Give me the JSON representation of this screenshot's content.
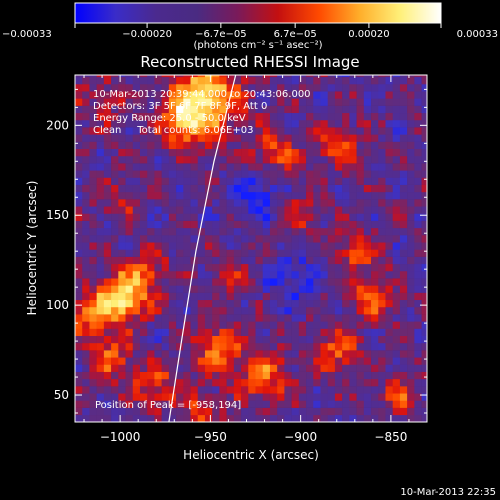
{
  "chart_data": {
    "type": "heatmap",
    "title": "Reconstructed RHESSI Image",
    "xlabel": "Heliocentric X (arcsec)",
    "ylabel": "Heliocentric Y (arcsec)",
    "xlim": [
      -1025,
      -830
    ],
    "ylim": [
      35,
      228
    ],
    "x_ticks": [
      -1000,
      -950,
      -900,
      -850
    ],
    "x_tick_labels": [
      "−1000",
      "−950",
      "−900",
      "−850"
    ],
    "y_ticks": [
      50,
      100,
      150,
      200
    ],
    "y_tick_labels": [
      "50",
      "100",
      "150",
      "200"
    ],
    "colorbar": {
      "range": [
        -0.00033,
        0.00033
      ],
      "ticks": [
        -0.00033,
        -0.0002,
        -6.7e-05,
        6.7e-05,
        0.0002,
        0.00033
      ],
      "tick_labels": [
        "−0.00033",
        "−0.00020",
        "−6.7e−05",
        "6.7e−05",
        "0.00020",
        "0.00033"
      ],
      "units_text": "(photons cm⁻² s⁻¹ asec⁻²)",
      "colors": [
        "#0000ff",
        "#3a2cc8",
        "#4b2a8e",
        "#4a2b82",
        "#7a1a5a",
        "#c41010",
        "#ff4a00",
        "#ffae2a",
        "#fff07a",
        "#ffffff"
      ]
    },
    "annotations": [
      "10-Mar-2013 20:39:44.000 to 20:43:06.000",
      "Detectors: 3F 5F 6F 7F 8F 9F, Att 0",
      "Energy Range: 25.0 - 50.0 keV",
      "Clean     Total counts: 6.06E+03"
    ],
    "peak_label": "Position of Peak = [-958,194]",
    "limb_curve": [
      [
        -973,
        35
      ],
      [
        -966,
        80
      ],
      [
        -958,
        130
      ],
      [
        -948,
        180
      ],
      [
        -936,
        228
      ]
    ],
    "sources": [
      {
        "x": -953,
        "y": 215,
        "amp": 2.4,
        "r": 13
      },
      {
        "x": -965,
        "y": 200,
        "amp": 1.4,
        "r": 9
      },
      {
        "x": -998,
        "y": 105,
        "amp": 2.3,
        "r": 9
      },
      {
        "x": -1015,
        "y": 95,
        "amp": 1.3,
        "r": 10
      },
      {
        "x": -985,
        "y": 120,
        "amp": 1.0,
        "r": 8
      },
      {
        "x": -1005,
        "y": 70,
        "amp": 1.1,
        "r": 9
      },
      {
        "x": -980,
        "y": 55,
        "amp": 1.1,
        "r": 9
      },
      {
        "x": -945,
        "y": 75,
        "amp": 1.5,
        "r": 9
      },
      {
        "x": -920,
        "y": 60,
        "amp": 1.3,
        "r": 10
      },
      {
        "x": -915,
        "y": 185,
        "amp": 1.1,
        "r": 9
      },
      {
        "x": -880,
        "y": 190,
        "amp": 1.0,
        "r": 9
      },
      {
        "x": -900,
        "y": 150,
        "amp": 0.8,
        "r": 8
      },
      {
        "x": -870,
        "y": 130,
        "amp": 1.1,
        "r": 8
      },
      {
        "x": -860,
        "y": 105,
        "amp": 1.2,
        "r": 9
      },
      {
        "x": -880,
        "y": 75,
        "amp": 1.2,
        "r": 9
      },
      {
        "x": -1010,
        "y": 215,
        "amp": 0.6,
        "r": 10
      },
      {
        "x": -955,
        "y": 40,
        "amp": 1.0,
        "r": 8
      },
      {
        "x": -938,
        "y": 115,
        "amp": 0.6,
        "r": 8
      },
      {
        "x": -1000,
        "y": 160,
        "amp": 0.7,
        "r": 9
      },
      {
        "x": -845,
        "y": 50,
        "amp": 0.9,
        "r": 8
      },
      {
        "x": -925,
        "y": 160,
        "amp": -1.0,
        "r": 10
      },
      {
        "x": -905,
        "y": 115,
        "amp": -0.8,
        "r": 10
      }
    ]
  },
  "footer": {
    "timestamp": "10-Mar-2013 22:35"
  }
}
